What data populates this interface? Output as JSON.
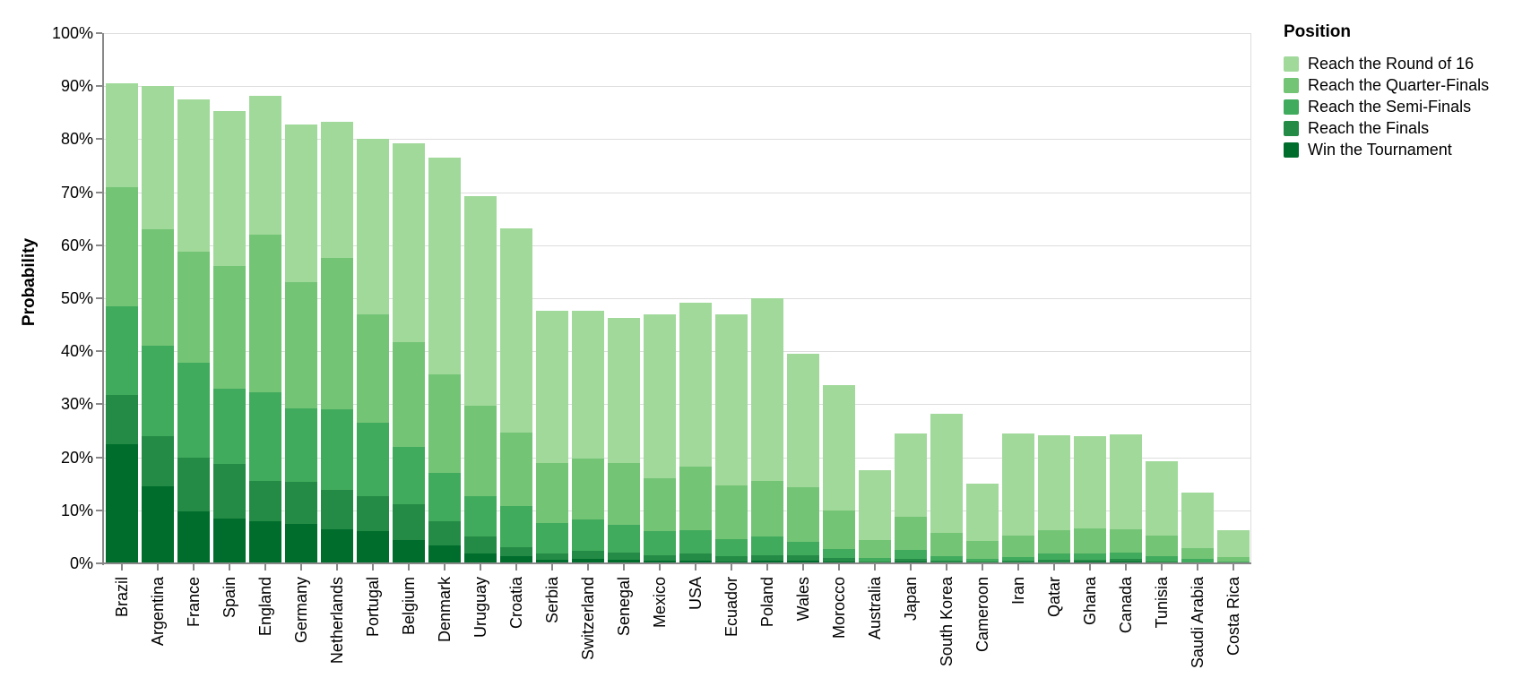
{
  "chart_data": {
    "type": "bar",
    "variant": "layered-overlay",
    "title": "",
    "ylabel": "Probability",
    "xlabel": "",
    "ylim": [
      0,
      100
    ],
    "grid": true,
    "legend_position": "top-right",
    "legend_title": "Position",
    "y_tick_labels": [
      "0%",
      "10%",
      "20%",
      "30%",
      "40%",
      "50%",
      "60%",
      "70%",
      "80%",
      "90%",
      "100%"
    ],
    "grid_color": "#dddddd",
    "axis_color": "#888888",
    "categories": [
      "Brazil",
      "Argentina",
      "France",
      "Spain",
      "England",
      "Germany",
      "Netherlands",
      "Portugal",
      "Belgium",
      "Denmark",
      "Uruguay",
      "Croatia",
      "Serbia",
      "Switzerland",
      "Senegal",
      "Mexico",
      "USA",
      "Ecuador",
      "Poland",
      "Wales",
      "Morocco",
      "Australia",
      "Japan",
      "South Korea",
      "Cameroon",
      "Iran",
      "Qatar",
      "Ghana",
      "Canada",
      "Tunisia",
      "Saudi Arabia",
      "Costa Rica"
    ],
    "series": [
      {
        "name": "Reach the Round of 16",
        "color": "#a1d99b",
        "values": [
          90.5,
          90,
          87.5,
          85.3,
          88.2,
          82.8,
          83.2,
          80,
          79.2,
          76.5,
          69.2,
          63.2,
          47.6,
          47.6,
          46.2,
          47,
          49.2,
          47,
          50,
          39.5,
          33.6,
          17.6,
          24.5,
          28.2,
          15,
          24.5,
          24.2,
          24,
          24.3,
          19.2,
          13.3,
          6.3
        ]
      },
      {
        "name": "Reach the Quarter-Finals",
        "color": "#74c476",
        "values": [
          71,
          63,
          58.8,
          56,
          62,
          53,
          57.6,
          47,
          41.8,
          35.7,
          29.8,
          24.6,
          19,
          19.8,
          19,
          16,
          18.2,
          14.7,
          15.6,
          14.4,
          10,
          4.4,
          8.8,
          5.7,
          4.3,
          5.3,
          6.3,
          6.6,
          6.5,
          5.2,
          2.8,
          1.2
        ]
      },
      {
        "name": "Reach the Semi-Finals",
        "color": "#41ab5d",
        "values": [
          48.5,
          41,
          37.8,
          33,
          32.3,
          29.3,
          29,
          26.6,
          22,
          17,
          12.6,
          10.8,
          7.6,
          8.3,
          7.2,
          6,
          6.2,
          4.6,
          5,
          4.1,
          2.7,
          1,
          2.5,
          1.3,
          0.8,
          1.1,
          1.8,
          1.9,
          2,
          1.3,
          0.85,
          0.4
        ]
      },
      {
        "name": "Reach the Finals",
        "color": "#238b45",
        "values": [
          31.8,
          24,
          20,
          18.7,
          15.5,
          15.3,
          13.8,
          12.6,
          11.1,
          7.9,
          5.1,
          3,
          1.9,
          2.4,
          2.1,
          1.6,
          1.8,
          1.4,
          1.5,
          1.5,
          1,
          0.3,
          0.8,
          0.5,
          0.3,
          0.5,
          0.6,
          0.7,
          0.8,
          0.4,
          0.25,
          0.1
        ]
      },
      {
        "name": "Win the Tournament",
        "color": "#006d2c",
        "values": [
          22.4,
          14.5,
          9.8,
          8.5,
          8,
          7.5,
          6.5,
          6.1,
          4.4,
          3.3,
          1.9,
          1.3,
          0.7,
          0.9,
          0.7,
          0.5,
          0.55,
          0.4,
          0.5,
          0.5,
          0.3,
          0.1,
          0.3,
          0.2,
          0.1,
          0.2,
          0.25,
          0.3,
          0.3,
          0.15,
          0.1,
          0.05
        ]
      }
    ]
  },
  "layout_note": ""
}
